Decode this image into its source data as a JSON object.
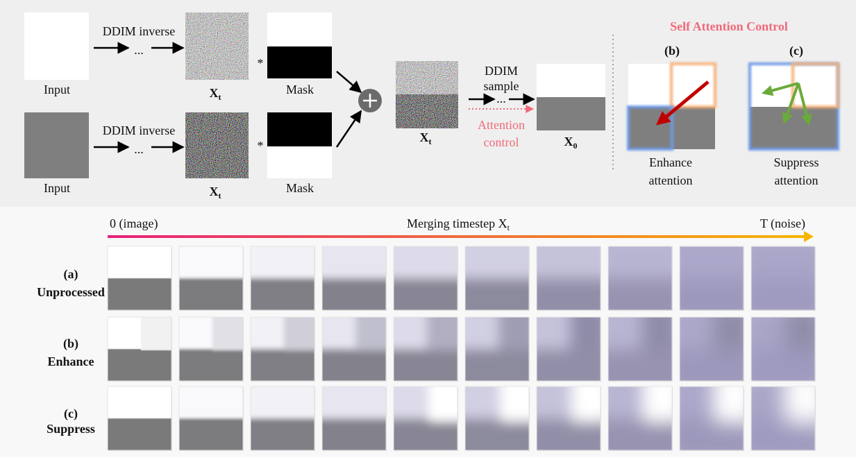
{
  "pipeline": {
    "rows": [
      {
        "input_label": "Input",
        "inverse_label": "DDIM inverse",
        "ellipsis": "...",
        "latent_label": "X",
        "latent_sub": "t",
        "multiply": "*",
        "mask_label": "Mask"
      },
      {
        "input_label": "Input",
        "inverse_label": "DDIM inverse",
        "ellipsis": "...",
        "latent_label": "X",
        "latent_sub": "t",
        "multiply": "*",
        "mask_label": "Mask"
      }
    ],
    "merged_label": "X",
    "merged_sub": "t",
    "sample_label": [
      "DDIM",
      "sample"
    ],
    "sample_ellipsis": "...",
    "attention_label": [
      "Attention",
      "control"
    ],
    "output_label": "X",
    "output_sub": "0"
  },
  "self_attention": {
    "title": "Self Attention Control",
    "panels": [
      {
        "tag": "(b)",
        "caption": [
          "Enhance",
          "attention"
        ]
      },
      {
        "tag": "(c)",
        "caption": [
          "Suppress",
          "attention"
        ]
      }
    ]
  },
  "timeline": {
    "start": "0 (image)",
    "label": "Merging timestep X",
    "label_sub": "t",
    "end": "T (noise)"
  },
  "results": {
    "rows": [
      {
        "tag": "(a)",
        "name": "Unprocessed"
      },
      {
        "tag": "(b)",
        "name": "Enhance"
      },
      {
        "tag": "(c)",
        "name": "Suppress"
      }
    ]
  }
}
